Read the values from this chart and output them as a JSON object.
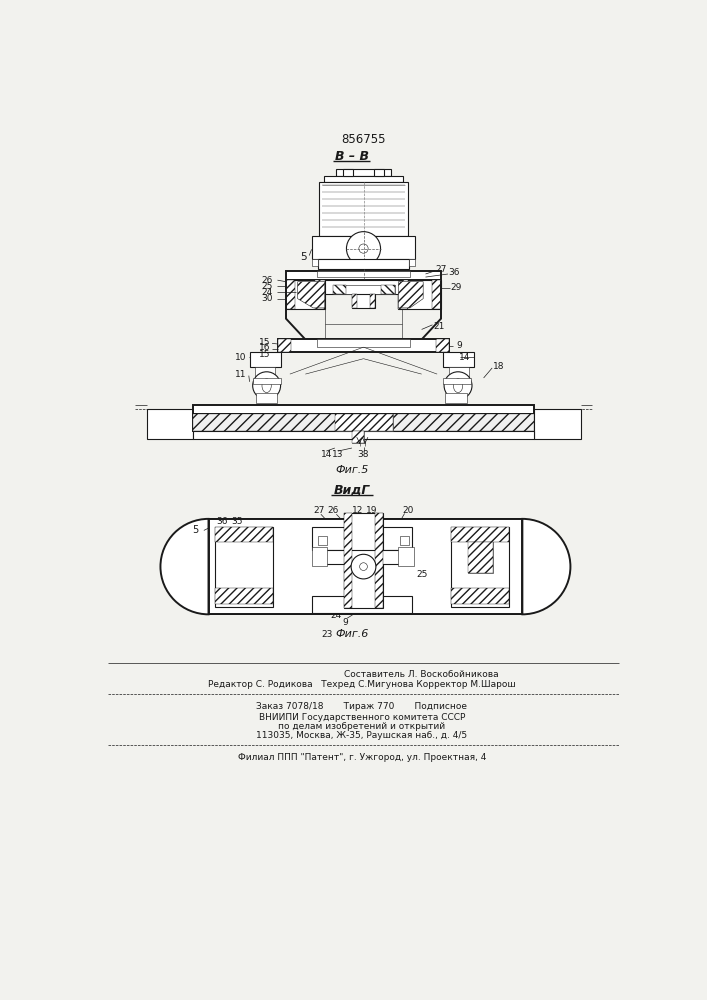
{
  "patent_number": "856755",
  "view1_label": "В – В",
  "view2_label": "ВидГ",
  "fig5_label": "Фиг.5",
  "fig6_label": "Фиг.6",
  "footer_line1": "Составитель Л. Воскобойникова",
  "footer_line2": "Редактор С. Родикова   Техред С.Мигунова Корректор М.Шарош",
  "footer_line3": "Заказ 7078/18       Тираж 770       Подписное",
  "footer_line4": "ВНИИПИ Государственного комитета СССР",
  "footer_line5": "по делам изобретений и открытий",
  "footer_line6": "113035, Москва, Ж-35, Раушская наб., д. 4/5",
  "footer_line7": "Филиал ППП \"Патент\", г. Ужгород, ул. Проектная, 4",
  "bg_color": "#f2f2ee",
  "line_color": "#1a1a1a"
}
